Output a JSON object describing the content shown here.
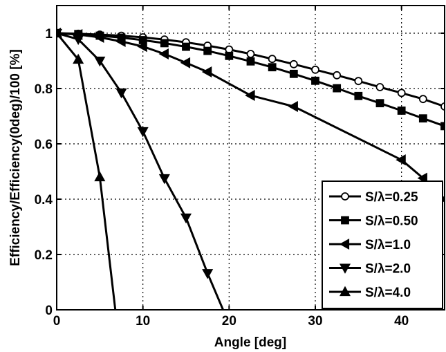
{
  "chart_data": {
    "type": "line",
    "xlabel": "Angle [deg]",
    "ylabel": "Efficiency/Efficiency(0deg)/100 [%]",
    "xlim": [
      0,
      45
    ],
    "ylim": [
      0,
      1.1
    ],
    "xticks": [
      0,
      10,
      20,
      30,
      40
    ],
    "yticks": [
      0,
      0.2,
      0.4,
      0.6,
      0.8,
      1
    ],
    "xtick_labels": [
      "0",
      "10",
      "20",
      "30",
      "40"
    ],
    "ytick_labels": [
      "0",
      "0.2",
      "0.4",
      "0.6",
      "0.8",
      "1"
    ],
    "grid": true,
    "legend_position": "bottom-right",
    "series": [
      {
        "name": "S/λ=0.25",
        "marker": "circle",
        "x": [
          0,
          2.5,
          5,
          7.5,
          10,
          12.5,
          15,
          17.5,
          20,
          22.5,
          25,
          27.5,
          30,
          32.5,
          35,
          37.5,
          40,
          42.5,
          45
        ],
        "y": [
          1.0,
          0.998,
          0.995,
          0.991,
          0.985,
          0.977,
          0.967,
          0.955,
          0.941,
          0.925,
          0.907,
          0.888,
          0.868,
          0.848,
          0.827,
          0.805,
          0.784,
          0.762,
          0.735
        ]
      },
      {
        "name": "S/λ=0.50",
        "marker": "square",
        "x": [
          0,
          2.5,
          5,
          7.5,
          10,
          12.5,
          15,
          17.5,
          20,
          22.5,
          25,
          27.5,
          30,
          32.5,
          35,
          37.5,
          40,
          42.5,
          45
        ],
        "y": [
          1.0,
          0.997,
          0.991,
          0.984,
          0.975,
          0.964,
          0.951,
          0.936,
          0.918,
          0.898,
          0.877,
          0.853,
          0.828,
          0.801,
          0.773,
          0.747,
          0.72,
          0.692,
          0.664
        ]
      },
      {
        "name": "S/λ=1.0",
        "marker": "triangle-left",
        "x": [
          0,
          2.5,
          5,
          7.5,
          10,
          12.5,
          15,
          17.5,
          22.5,
          27.5,
          40,
          42.5,
          45
        ],
        "y": [
          1.0,
          0.995,
          0.985,
          0.97,
          0.952,
          0.925,
          0.893,
          0.86,
          0.775,
          0.735,
          0.542,
          0.476,
          0.4
        ]
      },
      {
        "name": "S/λ=2.0",
        "marker": "triangle-down",
        "x": [
          0,
          2.5,
          5,
          7.5,
          10,
          12.5,
          15,
          17.5,
          19.3
        ],
        "y": [
          1.0,
          0.978,
          0.9,
          0.785,
          0.645,
          0.475,
          0.333,
          0.132,
          0.0
        ]
      },
      {
        "name": "S/λ=4.0",
        "marker": "triangle-up",
        "x": [
          0,
          2.5,
          5,
          6.8
        ],
        "y": [
          1.0,
          0.905,
          0.48,
          0.0
        ]
      }
    ]
  }
}
